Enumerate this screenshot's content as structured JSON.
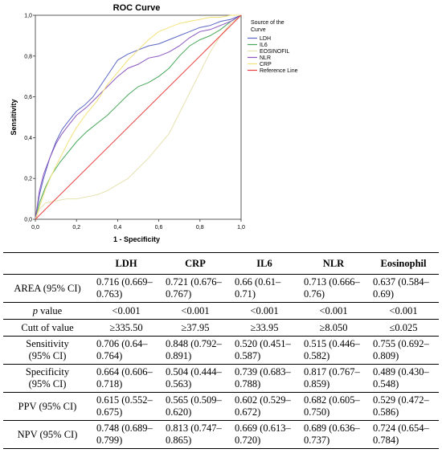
{
  "chart_data": {
    "type": "line",
    "title": "ROC Curve",
    "xlabel": "1 - Specificity",
    "ylabel": "Sensitivity",
    "xlim": [
      0,
      1
    ],
    "ylim": [
      0,
      1
    ],
    "xticks": [
      "0,0",
      "0,2",
      "0,4",
      "0,6",
      "0,8",
      "1,0"
    ],
    "yticks": [
      "0,0",
      "0,2",
      "0,4",
      "0,6",
      "0,8",
      "1,0"
    ],
    "grid": false,
    "legend_title": [
      "Source of the",
      "Curve"
    ],
    "legend_position": "right",
    "series": [
      {
        "name": "LDH",
        "color": "#5b66c4",
        "x": [
          0,
          0.02,
          0.04,
          0.07,
          0.1,
          0.13,
          0.16,
          0.2,
          0.24,
          0.28,
          0.32,
          0.36,
          0.4,
          0.45,
          0.5,
          0.55,
          0.6,
          0.65,
          0.7,
          0.75,
          0.8,
          0.85,
          0.9,
          0.95,
          1.0
        ],
        "y": [
          0,
          0.12,
          0.2,
          0.3,
          0.38,
          0.44,
          0.48,
          0.53,
          0.56,
          0.6,
          0.66,
          0.72,
          0.78,
          0.81,
          0.83,
          0.85,
          0.86,
          0.88,
          0.9,
          0.92,
          0.94,
          0.95,
          0.97,
          0.98,
          1.0
        ]
      },
      {
        "name": "IL6",
        "color": "#48a85a",
        "x": [
          0,
          0.02,
          0.05,
          0.08,
          0.12,
          0.16,
          0.2,
          0.25,
          0.3,
          0.35,
          0.4,
          0.45,
          0.5,
          0.55,
          0.6,
          0.65,
          0.7,
          0.75,
          0.8,
          0.85,
          0.9,
          0.95,
          1.0
        ],
        "y": [
          0,
          0.08,
          0.16,
          0.22,
          0.28,
          0.33,
          0.38,
          0.43,
          0.47,
          0.51,
          0.56,
          0.61,
          0.65,
          0.67,
          0.7,
          0.74,
          0.8,
          0.85,
          0.88,
          0.9,
          0.93,
          0.97,
          1.0
        ]
      },
      {
        "name": "EOSINOFIL",
        "color": "#e6e2b0",
        "x": [
          0,
          0.02,
          0.05,
          0.1,
          0.15,
          0.2,
          0.25,
          0.3,
          0.35,
          0.4,
          0.45,
          0.5,
          0.55,
          0.6,
          0.65,
          0.7,
          0.75,
          0.8,
          0.85,
          0.9,
          0.95,
          1.0
        ],
        "y": [
          0,
          0.05,
          0.08,
          0.09,
          0.1,
          0.1,
          0.11,
          0.12,
          0.14,
          0.17,
          0.2,
          0.25,
          0.3,
          0.36,
          0.42,
          0.52,
          0.62,
          0.72,
          0.82,
          0.9,
          0.96,
          1.0
        ]
      },
      {
        "name": "NLR",
        "color": "#8a55c0",
        "x": [
          0,
          0.02,
          0.04,
          0.07,
          0.1,
          0.13,
          0.16,
          0.2,
          0.25,
          0.3,
          0.35,
          0.4,
          0.45,
          0.5,
          0.55,
          0.6,
          0.65,
          0.7,
          0.75,
          0.8,
          0.85,
          0.9,
          0.95,
          1.0
        ],
        "y": [
          0,
          0.14,
          0.22,
          0.3,
          0.37,
          0.42,
          0.46,
          0.51,
          0.55,
          0.6,
          0.65,
          0.7,
          0.74,
          0.76,
          0.79,
          0.8,
          0.82,
          0.85,
          0.89,
          0.92,
          0.93,
          0.95,
          0.97,
          1.0
        ]
      },
      {
        "name": "CRP",
        "color": "#f2e27a",
        "x": [
          0,
          0.02,
          0.05,
          0.08,
          0.12,
          0.16,
          0.2,
          0.25,
          0.3,
          0.35,
          0.4,
          0.45,
          0.5,
          0.55,
          0.6,
          0.65,
          0.7,
          0.75,
          0.8,
          0.85,
          0.9,
          0.95,
          1.0
        ],
        "y": [
          0,
          0.06,
          0.15,
          0.22,
          0.3,
          0.38,
          0.45,
          0.52,
          0.58,
          0.66,
          0.72,
          0.78,
          0.83,
          0.88,
          0.92,
          0.94,
          0.96,
          0.97,
          0.98,
          0.99,
          0.99,
          1.0,
          1.0
        ]
      },
      {
        "name": "Reference Line",
        "color": "#e84040",
        "x": [
          0,
          1
        ],
        "y": [
          0,
          1
        ]
      }
    ]
  },
  "table": {
    "headers": [
      "",
      "LDH",
      "CRP",
      "IL6",
      "NLR",
      "Eosinophil"
    ],
    "rows": [
      {
        "label_lines": [
          "AREA (95% CI)"
        ],
        "cells": [
          [
            "0.716 (0.669–",
            "0.763)"
          ],
          [
            "0.721 (0.676–",
            "0.767)"
          ],
          [
            "0.66 (0.61–",
            "0.71)"
          ],
          [
            "0.713 (0.666–",
            "0.76)"
          ],
          [
            "0.637 (0.584–",
            "0.69)"
          ]
        ]
      },
      {
        "label_italic": "p",
        "label_rest": " value",
        "cells": [
          [
            "<0.001"
          ],
          [
            "<0.001"
          ],
          [
            "<0.001"
          ],
          [
            "<0.001"
          ],
          [
            "<0.001"
          ]
        ]
      },
      {
        "label_lines": [
          "Cutt of value"
        ],
        "cells": [
          [
            "≥335.50"
          ],
          [
            "≥37.95"
          ],
          [
            "≥33.95"
          ],
          [
            "≥8.050"
          ],
          [
            "≤0.025"
          ]
        ]
      },
      {
        "label_lines": [
          "Sensitivity",
          "(95% CI)"
        ],
        "cells": [
          [
            "0.706 (0.64–",
            "0.764)"
          ],
          [
            "0.848 (0.792–",
            "0.891)"
          ],
          [
            "0.520 (0.451–",
            "0.587)"
          ],
          [
            "0.515 (0.446–",
            "0.582)"
          ],
          [
            "0.755 (0.692–",
            "0.809)"
          ]
        ]
      },
      {
        "label_lines": [
          "Specificity",
          "(95% CI)"
        ],
        "cells": [
          [
            "0.664 (0.606–",
            "0.718)"
          ],
          [
            "0.504 (0.444–",
            "0.563)"
          ],
          [
            "0.739 (0.683–",
            "0.788)"
          ],
          [
            "0.817 (0.767–",
            "0.859)"
          ],
          [
            "0.489 (0.430–",
            "0.548)"
          ]
        ]
      },
      {
        "label_lines": [
          "PPV (95% CI)"
        ],
        "cells": [
          [
            "0.615 (0.552–",
            "0.675)"
          ],
          [
            "0.565 (0.509–",
            "0.620)"
          ],
          [
            "0.602 (0.529–",
            "0.672)"
          ],
          [
            "0.682 (0.605–",
            "0.750)"
          ],
          [
            "0.529 (0.472–",
            "0.586)"
          ]
        ]
      },
      {
        "label_lines": [
          "NPV (95% CI)"
        ],
        "cells": [
          [
            "0.748 (0.689–",
            "0.799)"
          ],
          [
            "0.813 (0.747–",
            "0.865)"
          ],
          [
            "0.669 (0.613–",
            "0.720)"
          ],
          [
            "0.689 (0.636–",
            "0.737)"
          ],
          [
            "0.724 (0.654–",
            "0.784)"
          ]
        ]
      }
    ]
  }
}
